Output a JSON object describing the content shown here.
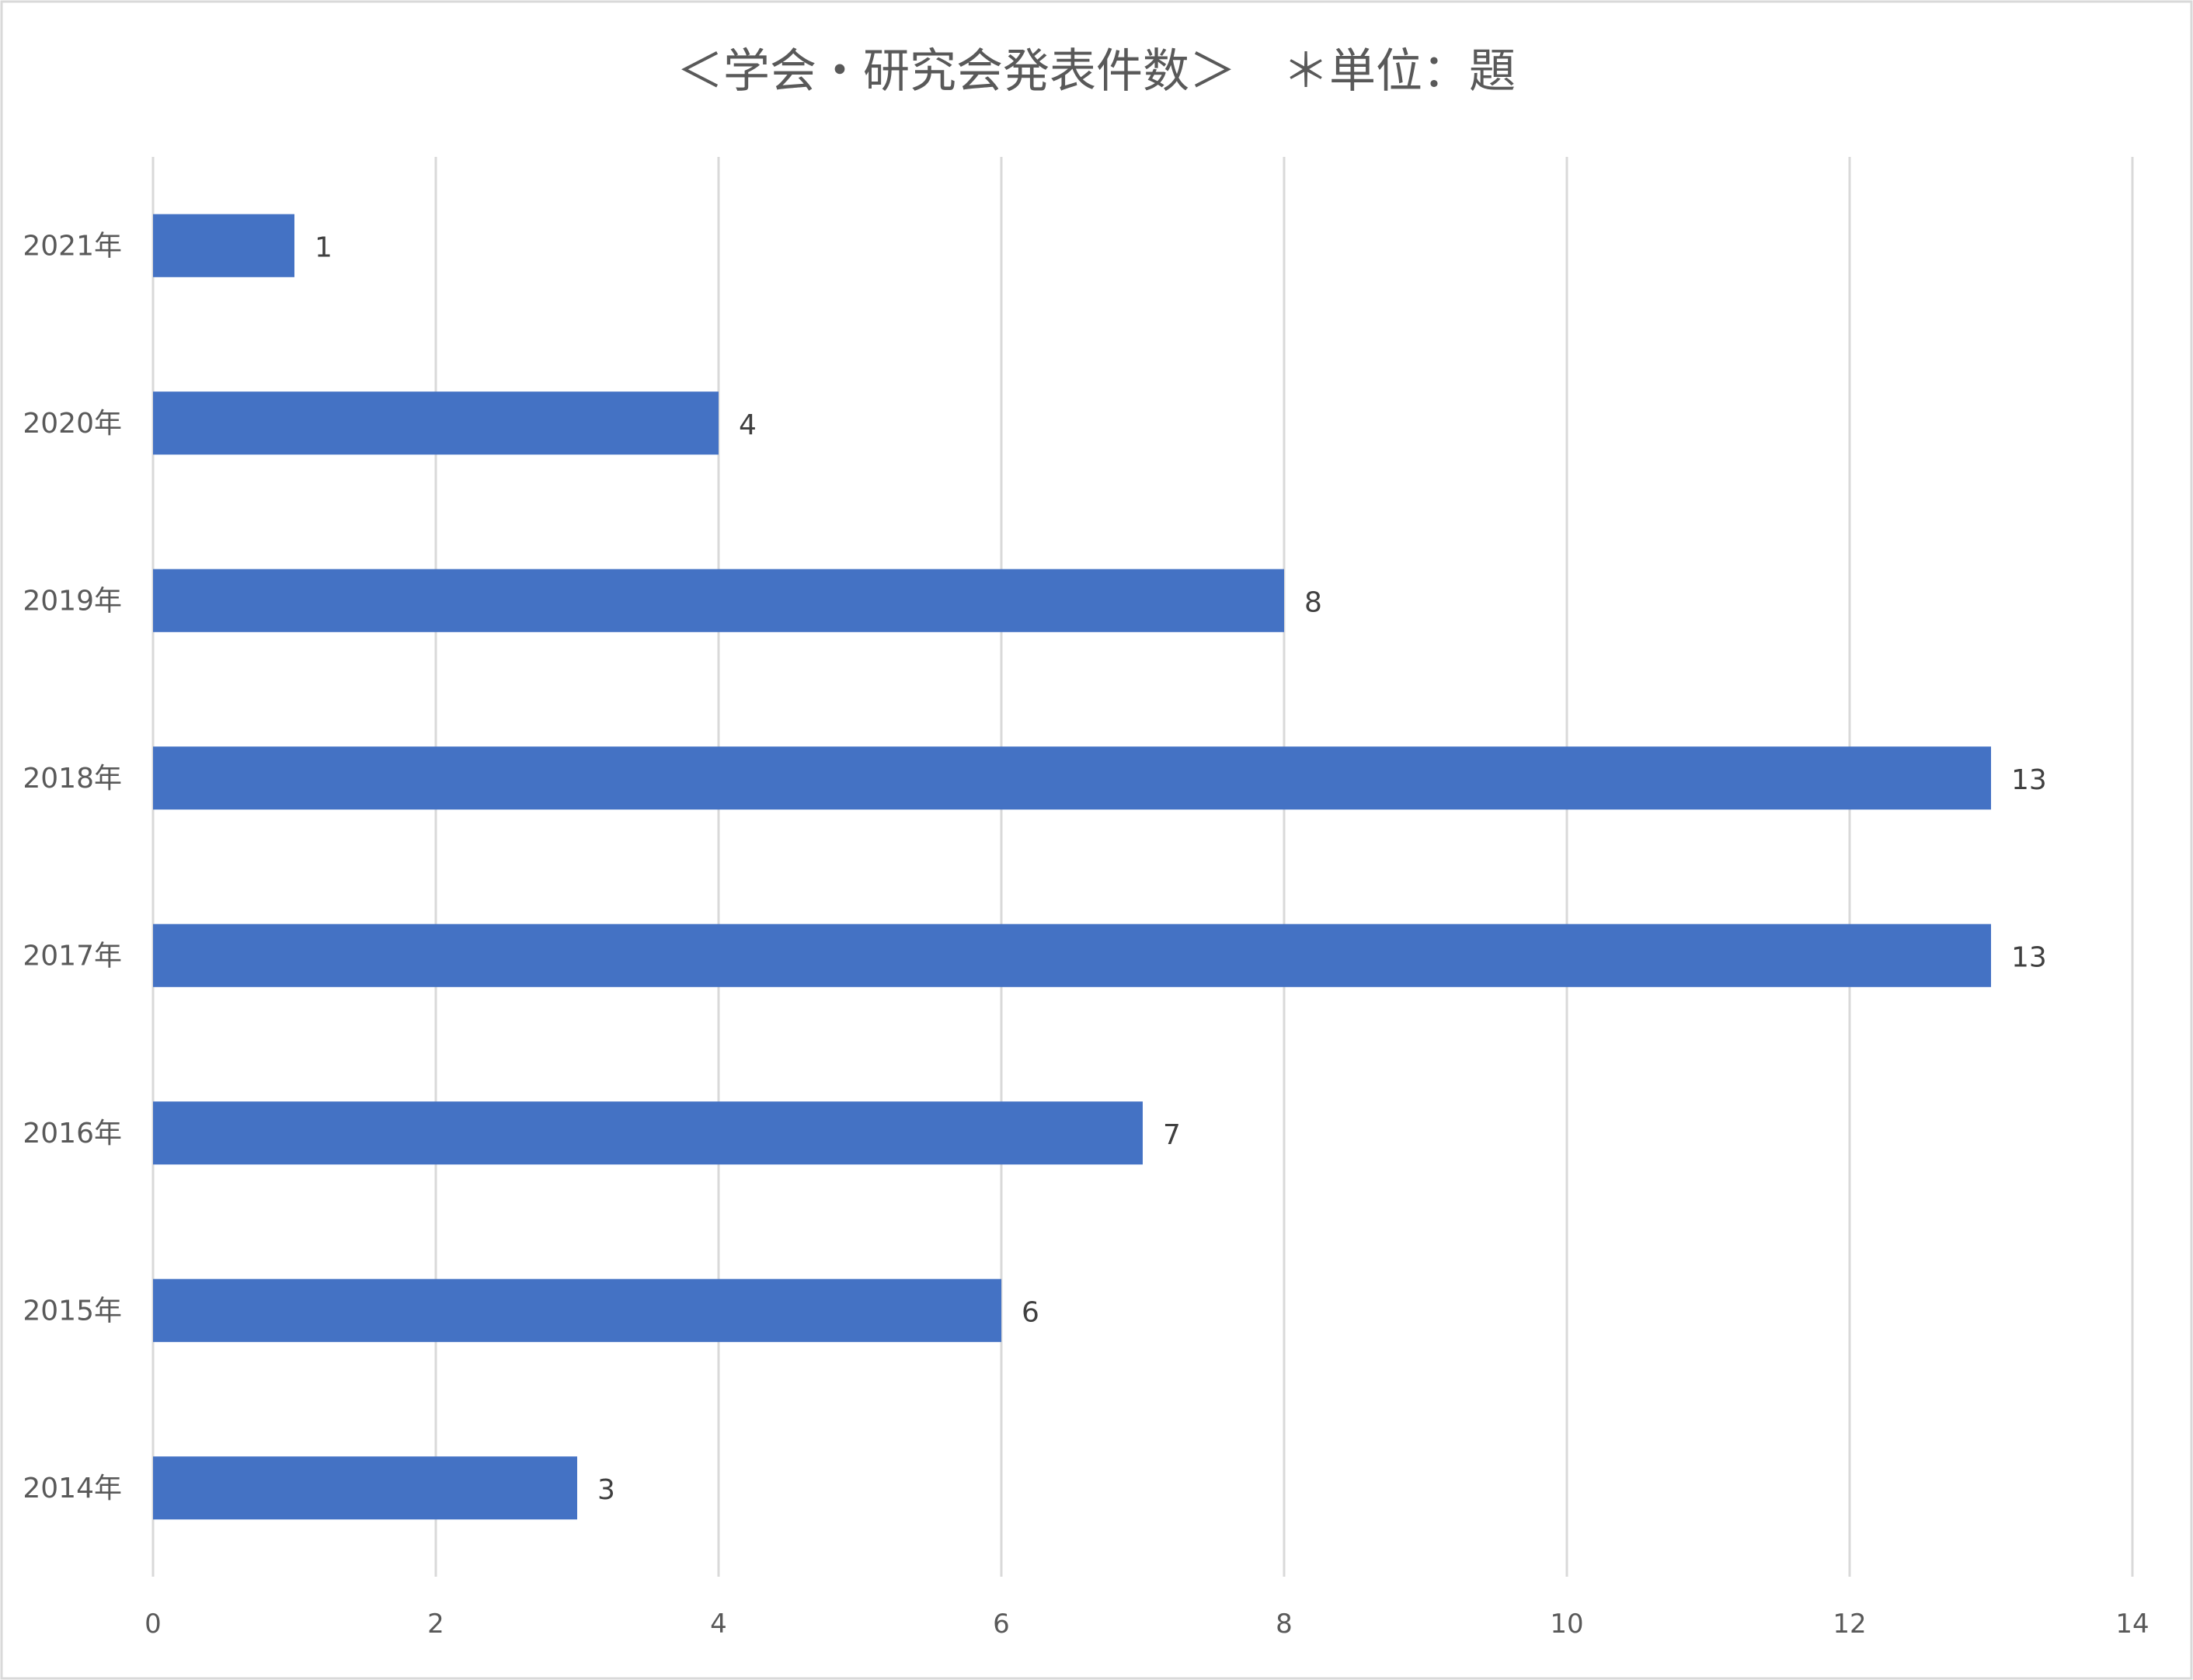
{
  "chart_data": {
    "type": "bar",
    "orientation": "horizontal",
    "title": "＜学会・研究会発表件数＞　＊単位：題",
    "categories": [
      "2021年",
      "2020年",
      "2019年",
      "2018年",
      "2017年",
      "2016年",
      "2015年",
      "2014年"
    ],
    "values": [
      1,
      4,
      8,
      13,
      13,
      7,
      6,
      3
    ],
    "data_labels": [
      "1",
      "4",
      "8",
      "13",
      "13",
      "7",
      "6",
      "3"
    ],
    "xlim": [
      0,
      14
    ],
    "x_ticks": [
      0,
      2,
      4,
      6,
      8,
      10,
      12,
      14
    ],
    "x_tick_labels": [
      "0",
      "2",
      "4",
      "6",
      "8",
      "10",
      "12",
      "14"
    ],
    "grid": "vertical",
    "legend": "none",
    "bar_color": "#4472C4",
    "grid_color": "#D9D9D9",
    "text_color": "#595959"
  }
}
